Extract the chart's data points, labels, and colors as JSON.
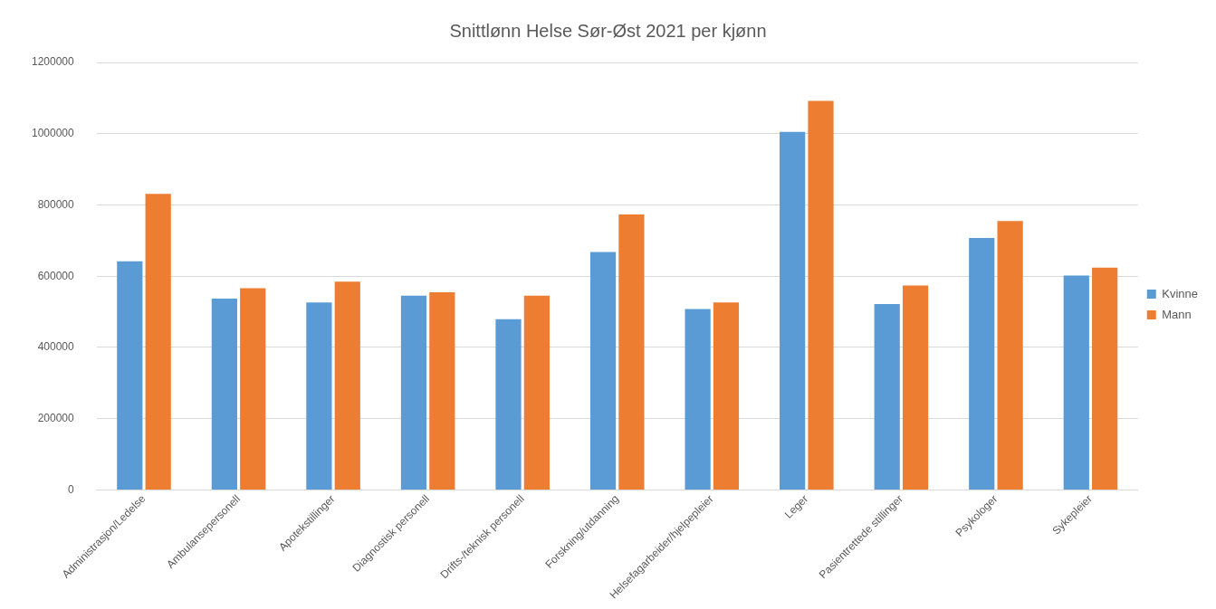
{
  "chart_data": {
    "type": "bar",
    "title": "Snittlønn Helse Sør-Øst 2021 per kjønn",
    "categories": [
      "Administrasjon/Ledelse",
      "Ambulansepersonell",
      "Apotekstillinger",
      "Diagnostisk personell",
      "Drifts-/teknisk personell",
      "Forskning/utdanning",
      "Helsefagarbeider/hjelpepleier",
      "Leger",
      "Pasientrettede stillinger",
      "Psykologer",
      "Sykepleier"
    ],
    "series": [
      {
        "name": "Kvinne",
        "color": "#5b9bd5",
        "values": [
          642000,
          537000,
          526000,
          545000,
          479000,
          668000,
          508000,
          1005000,
          522000,
          707000,
          602000
        ]
      },
      {
        "name": "Mann",
        "color": "#ed7d31",
        "values": [
          831000,
          566000,
          585000,
          555000,
          545000,
          773000,
          526000,
          1092000,
          574000,
          755000,
          624000
        ]
      }
    ],
    "ylim": [
      0,
      1200000
    ],
    "yticks": [
      0,
      200000,
      400000,
      600000,
      800000,
      1000000,
      1200000
    ],
    "grid": "y",
    "legend": "right"
  }
}
